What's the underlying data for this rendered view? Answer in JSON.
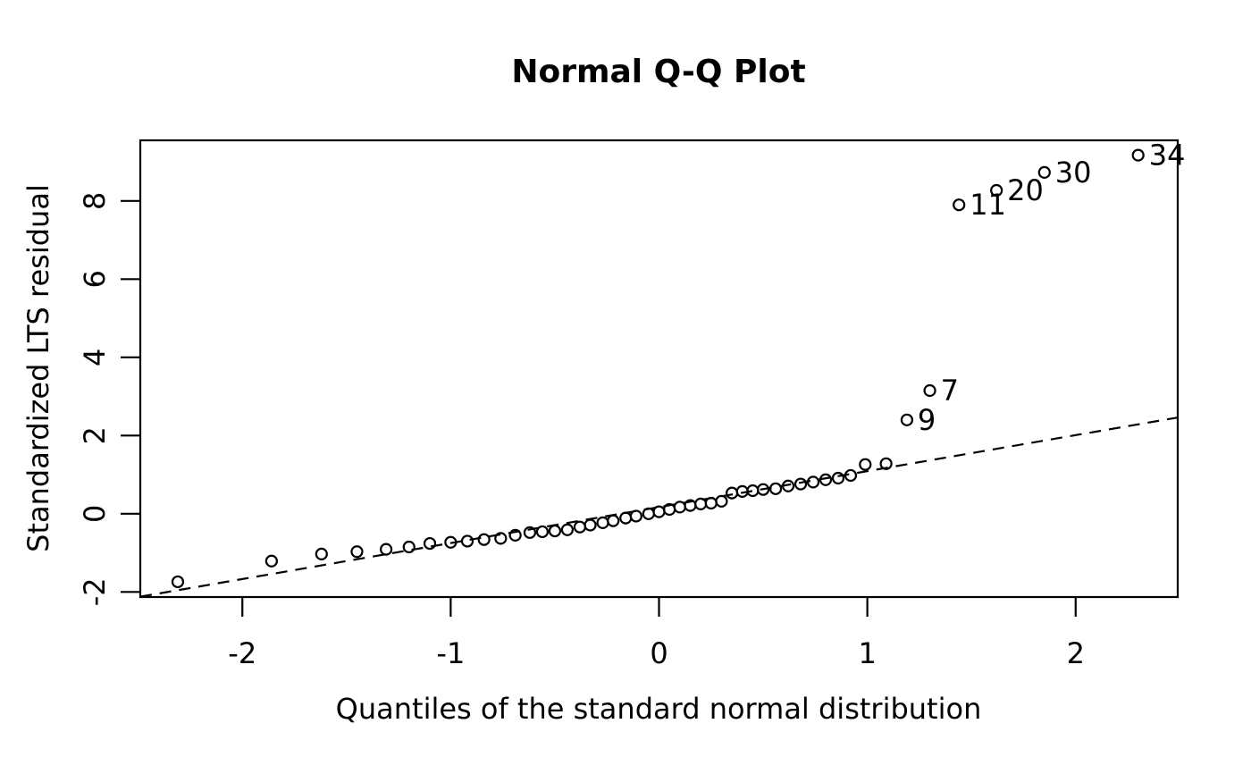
{
  "figure": {
    "background_color": "#ffffff",
    "foreground_color": "#000000"
  },
  "chart_data": {
    "type": "scatter",
    "title": "Normal Q-Q Plot",
    "xlabel": "Quantiles of the standard normal distribution",
    "ylabel": "Standardized LTS residual",
    "xlim": [
      -2.49,
      2.49
    ],
    "ylim": [
      -2.13,
      9.55
    ],
    "x_ticks": [
      "-2",
      "-1",
      "0",
      "1",
      "2"
    ],
    "x_tick_values": [
      -2,
      -1,
      0,
      1,
      2
    ],
    "y_ticks": [
      "-2",
      "0",
      "2",
      "4",
      "6",
      "8"
    ],
    "y_tick_values": [
      -2,
      0,
      2,
      4,
      6,
      8
    ],
    "grid": false,
    "legend": null,
    "marker": {
      "shape": "open-circle",
      "color": "#000000",
      "radius_px": 6
    },
    "reference_line": {
      "style": "dashed",
      "slope": 0.92,
      "intercept": 0.17,
      "color": "#000000"
    },
    "points": [
      [
        -2.31,
        -1.74
      ],
      [
        -1.86,
        -1.21
      ],
      [
        -1.62,
        -1.03
      ],
      [
        -1.45,
        -0.97
      ],
      [
        -1.31,
        -0.91
      ],
      [
        -1.2,
        -0.85
      ],
      [
        -1.1,
        -0.76
      ],
      [
        -1.0,
        -0.73
      ],
      [
        -0.92,
        -0.7
      ],
      [
        -0.84,
        -0.66
      ],
      [
        -0.76,
        -0.63
      ],
      [
        -0.69,
        -0.55
      ],
      [
        -0.62,
        -0.48
      ],
      [
        -0.56,
        -0.46
      ],
      [
        -0.5,
        -0.44
      ],
      [
        -0.44,
        -0.41
      ],
      [
        -0.38,
        -0.34
      ],
      [
        -0.33,
        -0.29
      ],
      [
        -0.27,
        -0.23
      ],
      [
        -0.22,
        -0.18
      ],
      [
        -0.16,
        -0.11
      ],
      [
        -0.11,
        -0.06
      ],
      [
        -0.05,
        0.0
      ],
      [
        0.0,
        0.05
      ],
      [
        0.05,
        0.11
      ],
      [
        0.1,
        0.17
      ],
      [
        0.15,
        0.21
      ],
      [
        0.2,
        0.25
      ],
      [
        0.25,
        0.27
      ],
      [
        0.3,
        0.32
      ],
      [
        0.35,
        0.53
      ],
      [
        0.4,
        0.57
      ],
      [
        0.45,
        0.59
      ],
      [
        0.5,
        0.62
      ],
      [
        0.56,
        0.64
      ],
      [
        0.62,
        0.71
      ],
      [
        0.68,
        0.76
      ],
      [
        0.74,
        0.81
      ],
      [
        0.8,
        0.87
      ],
      [
        0.86,
        0.91
      ],
      [
        0.92,
        0.98
      ],
      [
        0.99,
        1.26
      ],
      [
        1.09,
        1.28
      ]
    ],
    "labeled_points": [
      {
        "label": "9",
        "x": 1.19,
        "y": 2.4
      },
      {
        "label": "7",
        "x": 1.3,
        "y": 3.15
      },
      {
        "label": "11",
        "x": 1.44,
        "y": 7.9
      },
      {
        "label": "20",
        "x": 1.62,
        "y": 8.27
      },
      {
        "label": "30",
        "x": 1.85,
        "y": 8.73
      },
      {
        "label": "34",
        "x": 2.3,
        "y": 9.17
      }
    ]
  }
}
